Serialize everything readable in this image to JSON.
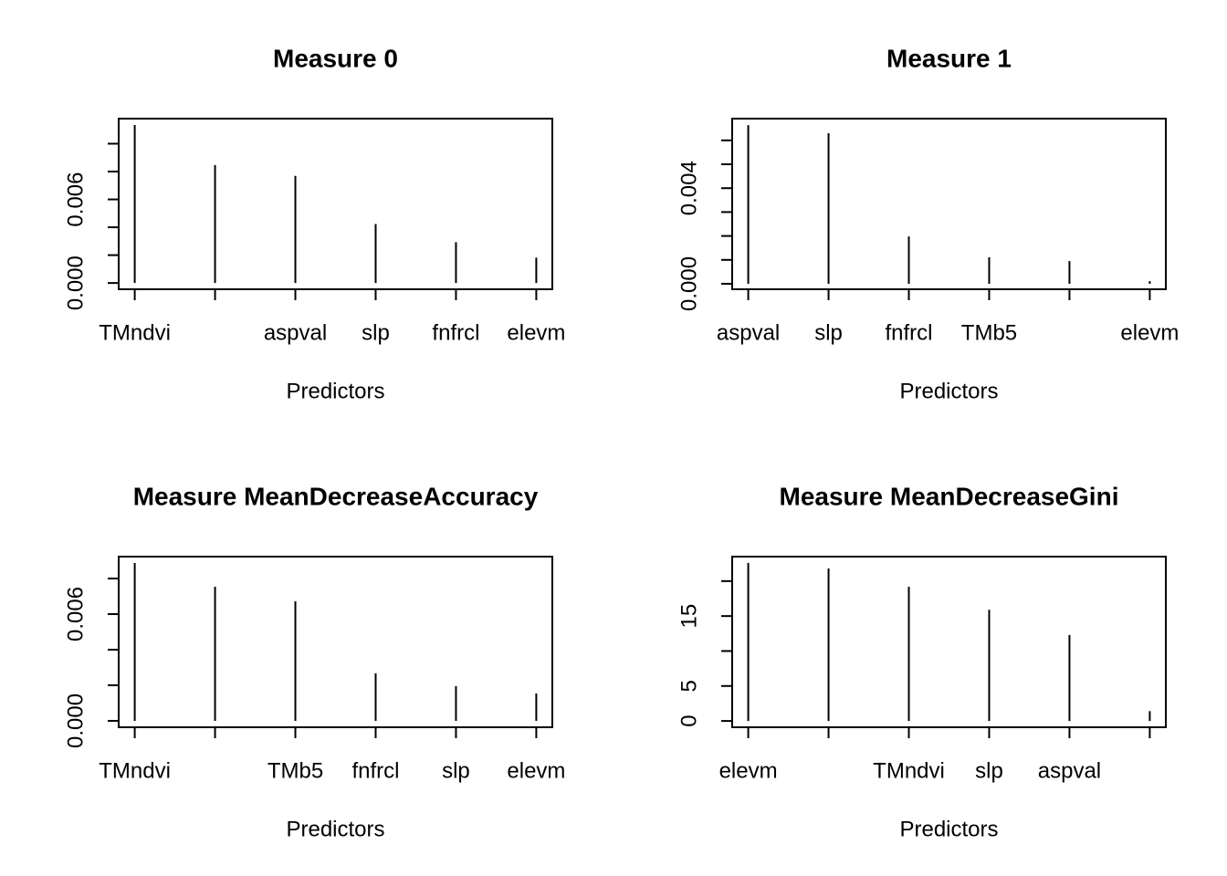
{
  "chart_data": [
    {
      "type": "h",
      "title": "Measure 0",
      "x_label": "Predictors",
      "categories": [
        "TMndvi",
        null,
        "aspval",
        "slp",
        "fnfrcl",
        "elevm"
      ],
      "values": [
        0.01134,
        0.00847,
        0.00769,
        0.00423,
        0.00293,
        0.00182
      ],
      "color": "#000000",
      "ylim": [
        -0.00045,
        0.0118
      ],
      "yticks": [
        {
          "value": 0,
          "label": "0.000"
        },
        {
          "value": 0.002,
          "label": null
        },
        {
          "value": 0.004,
          "label": null
        },
        {
          "value": 0.006,
          "label": "0.006"
        },
        {
          "value": 0.008,
          "label": null
        },
        {
          "value": 0.01,
          "label": null
        }
      ]
    },
    {
      "type": "h",
      "title": "Measure 1",
      "x_label": "Predictors",
      "categories": [
        "aspval",
        "slp",
        "fnfrcl",
        "TMb5",
        null,
        "elevm"
      ],
      "values": [
        0.00664,
        0.0063,
        0.00198,
        0.00111,
        0.00095,
        0.00011
      ],
      "color": "#000000",
      "ylim": [
        -0.00023,
        0.00691
      ],
      "yticks": [
        {
          "value": 0,
          "label": "0.000"
        },
        {
          "value": 0.001,
          "label": null
        },
        {
          "value": 0.002,
          "label": null
        },
        {
          "value": 0.003,
          "label": null
        },
        {
          "value": 0.004,
          "label": "0.004"
        },
        {
          "value": 0.005,
          "label": null
        },
        {
          "value": 0.006,
          "label": null
        }
      ]
    },
    {
      "type": "h",
      "title": "Measure MeanDecreaseAccuracy",
      "x_label": "Predictors",
      "categories": [
        "TMndvi",
        null,
        "TMb5",
        "fnfrcl",
        "slp",
        "elevm"
      ],
      "values": [
        0.00887,
        0.00754,
        0.00672,
        0.00267,
        0.00195,
        0.00154
      ],
      "color": "#000000",
      "ylim": [
        -0.00036,
        0.00923
      ],
      "yticks": [
        {
          "value": 0,
          "label": "0.000"
        },
        {
          "value": 0.002,
          "label": null
        },
        {
          "value": 0.004,
          "label": null
        },
        {
          "value": 0.006,
          "label": "0.006"
        },
        {
          "value": 0.008,
          "label": null
        }
      ]
    },
    {
      "type": "h",
      "title": "Measure MeanDecreaseGini",
      "x_label": "Predictors",
      "categories": [
        "elevm",
        null,
        "TMndvi",
        "slp",
        "aspval",
        null
      ],
      "values": [
        22.6,
        21.8,
        19.2,
        15.9,
        12.3,
        1.4
      ],
      "color": "#000000",
      "ylim": [
        -0.9,
        23.5
      ],
      "yticks": [
        0,
        5,
        {
          "value": 10,
          "label": null
        },
        15,
        {
          "value": 20,
          "label": null
        }
      ]
    }
  ]
}
